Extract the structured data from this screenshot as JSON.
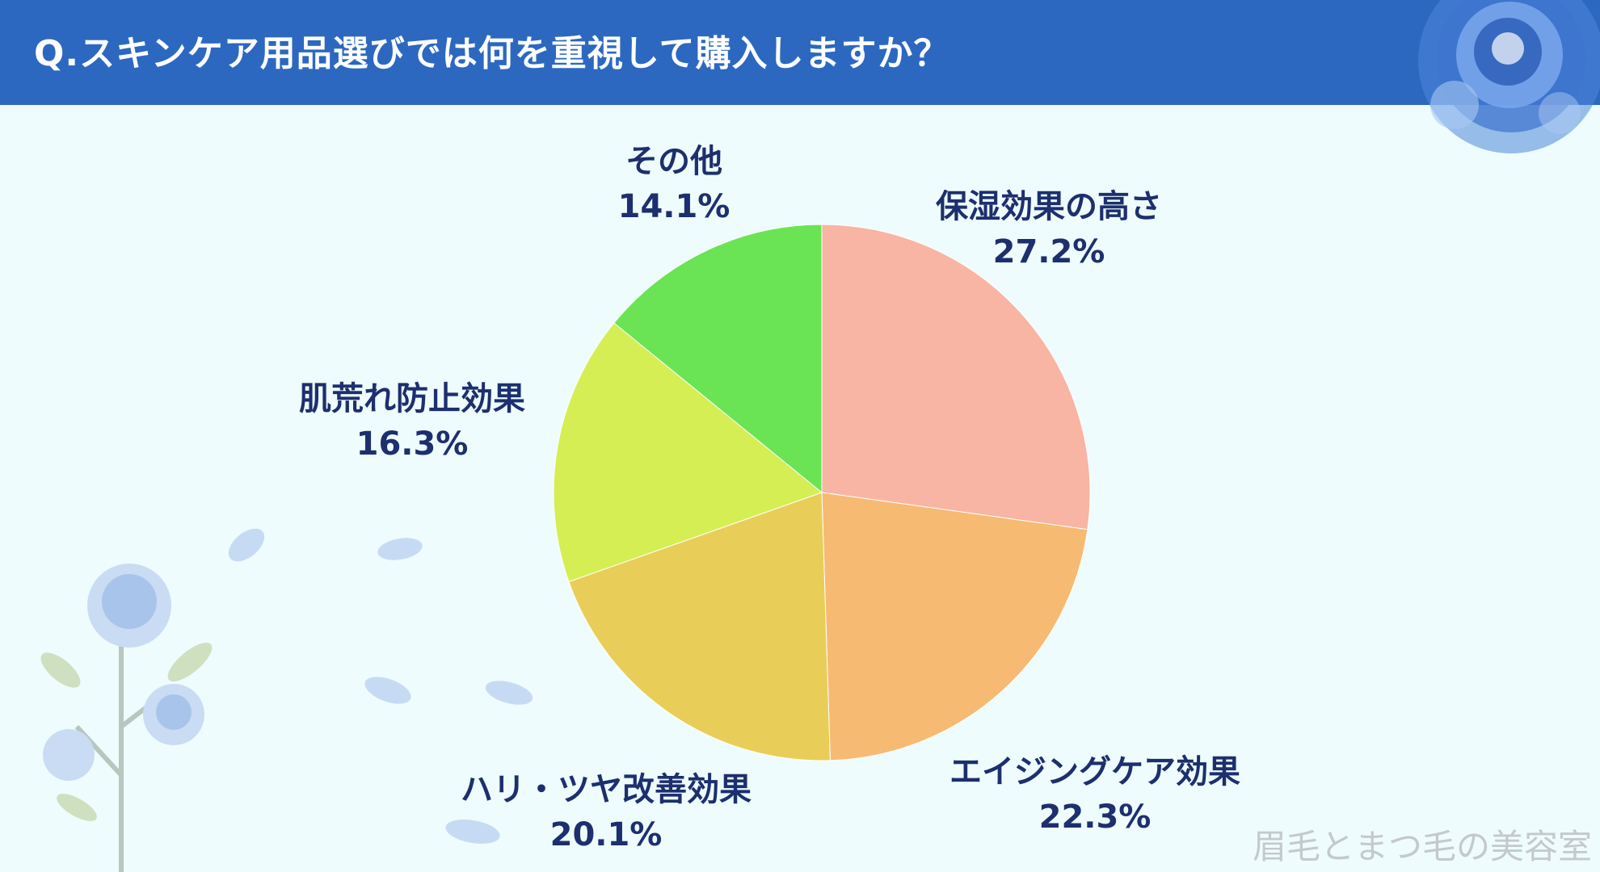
{
  "header": {
    "title": "Q.スキンケア用品選びでは何を重視して購入しますか？"
  },
  "chart_data": {
    "type": "pie",
    "title": "Q.スキンケア用品選びでは何を重視して購入しますか？",
    "start_angle_deg": 0,
    "direction": "clockwise",
    "slices": [
      {
        "label": "保湿効果の高さ",
        "value": 27.2,
        "value_label": "27.2%",
        "color": "#f8b5a3"
      },
      {
        "label": "エイジングケア効果",
        "value": 22.3,
        "value_label": "22.3%",
        "color": "#f6ba72"
      },
      {
        "label": "ハリ・ツヤ改善効果",
        "value": 20.1,
        "value_label": "20.1%",
        "color": "#e8ce58"
      },
      {
        "label": "肌荒れ防止効果",
        "value": 16.3,
        "value_label": "16.3%",
        "color": "#d4ee54"
      },
      {
        "label": "その他",
        "value": 14.1,
        "value_label": "14.1%",
        "color": "#6ae454"
      }
    ]
  },
  "watermark": "眉毛とまつ毛の美容室",
  "colors": {
    "header_bg": "#2c68c0",
    "page_bg": "#eefcfd",
    "label_text": "#1c2f6e",
    "rose": "#5a8ee0"
  }
}
